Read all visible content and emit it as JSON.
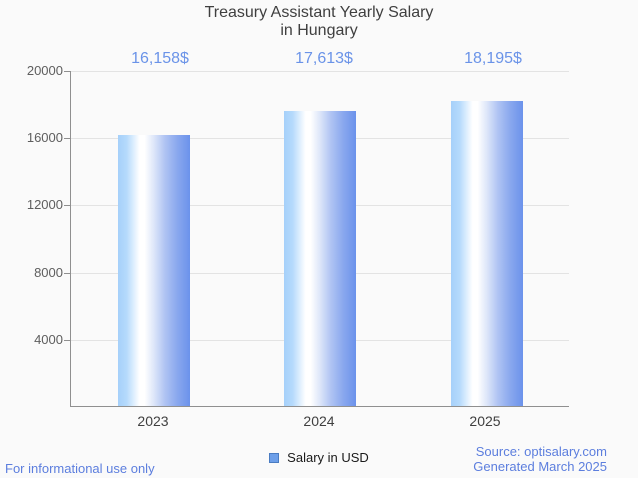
{
  "title": {
    "line1": "Treasury Assistant Yearly Salary",
    "line2": "in Hungary"
  },
  "chart_data": {
    "type": "bar",
    "title": "Treasury Assistant Yearly Salary in Hungary",
    "categories": [
      "2023",
      "2024",
      "2025"
    ],
    "series": [
      {
        "name": "Salary in USD",
        "values": [
          16158,
          17613,
          18195
        ]
      }
    ],
    "value_labels": [
      "16,158$",
      "17,613$",
      "18,195$"
    ],
    "xlabel": "",
    "ylabel": "",
    "ylim": [
      0,
      20000
    ],
    "yticks": [
      20000,
      16000,
      12000,
      8000,
      4000
    ],
    "ytick_labels": [
      "20000",
      "16000",
      "12000",
      "8000",
      "4000"
    ],
    "grid": true,
    "legend": [
      "Salary in USD"
    ],
    "legend_position": "bottom",
    "bar_style": "horizontal cylinder gradient light-blue to blue"
  },
  "legend": {
    "label": "Salary in USD"
  },
  "footer": {
    "disclaimer": "For informational use only",
    "source": "Source: optisalary.com",
    "generated": "Generated March 2025"
  },
  "colors": {
    "background": "#fafafa",
    "title_text": "#3f3f3f",
    "value_label_blue": "#6a93e8",
    "footer_blue": "#5c7ede",
    "axis_line": "#8f8f8f",
    "gridline": "#e3e3e3",
    "bar_left": "#a5d0fa",
    "bar_highlight": "#ffffff",
    "bar_right": "#6b92eb",
    "legend_fill": "#6d9fe9",
    "legend_border": "#4a7cc2"
  }
}
